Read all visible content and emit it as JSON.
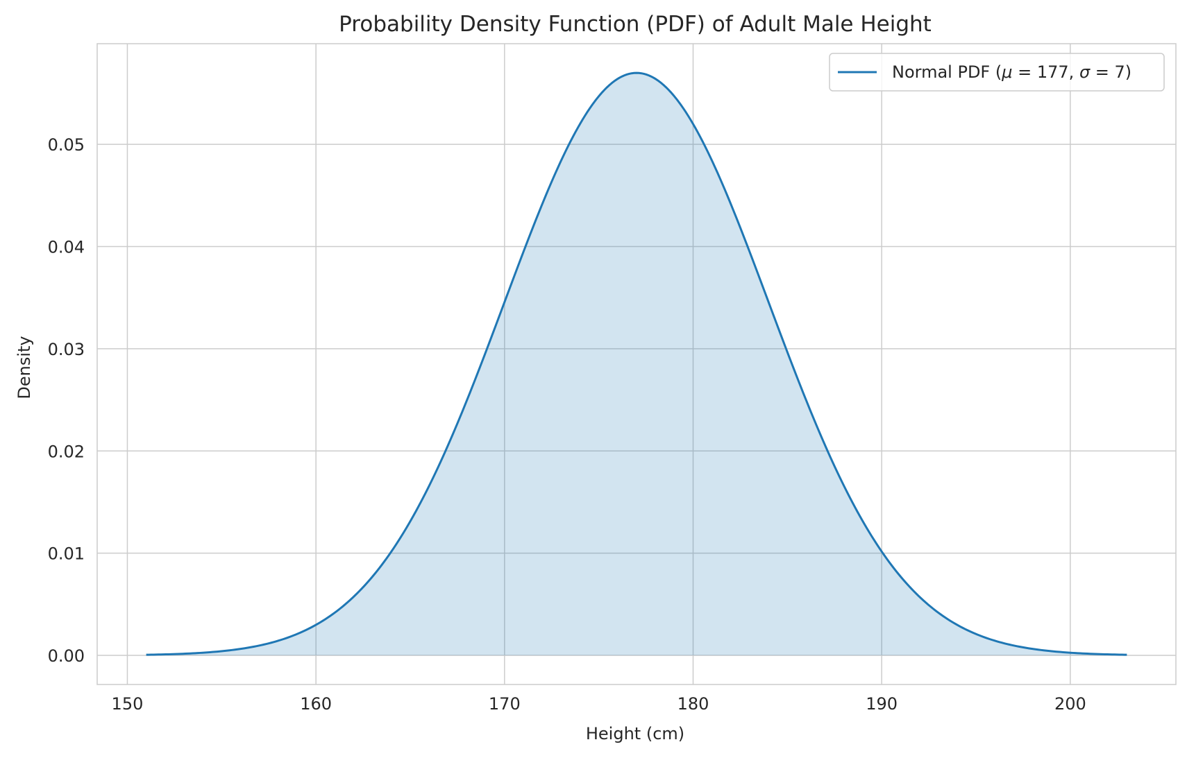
{
  "chart_data": {
    "type": "line",
    "title": "Probability Density Function (PDF) of Adult Male Height",
    "xlabel": "Height (cm)",
    "ylabel": "Density",
    "xlim": [
      148.4,
      205.6
    ],
    "ylim": [
      -0.00285,
      0.05985
    ],
    "xticks": [
      150,
      160,
      170,
      180,
      190,
      200
    ],
    "xtick_labels": [
      "150",
      "160",
      "170",
      "180",
      "190",
      "200"
    ],
    "yticks": [
      0.0,
      0.01,
      0.02,
      0.03,
      0.04,
      0.05
    ],
    "ytick_labels": [
      "0.00",
      "0.01",
      "0.02",
      "0.03",
      "0.04",
      "0.05"
    ],
    "grid": true,
    "legend_position": "top-right",
    "series": [
      {
        "name": "Normal PDF (μ = 177, σ = 7)",
        "legend_parts": {
          "prefix": "Normal PDF (",
          "mu": "μ",
          "eq1": " = 177, ",
          "sigma": "σ",
          "eq2": " = 7)"
        },
        "color": "#1f77b4",
        "fill_color": "#1f77b4",
        "fill_opacity": 0.2,
        "x": [
          151,
          153,
          155,
          157,
          159,
          161,
          163,
          165,
          167,
          169,
          171,
          173,
          175,
          177,
          179,
          181,
          183,
          185,
          187,
          189,
          191,
          193,
          195,
          197,
          199,
          201,
          203
        ],
        "y": [
          0.0001,
          0.0002,
          0.0004,
          0.001,
          0.0021,
          0.0041,
          0.0076,
          0.0131,
          0.0205,
          0.0294,
          0.0394,
          0.0482,
          0.0548,
          0.057,
          0.0548,
          0.0482,
          0.0394,
          0.0294,
          0.0205,
          0.0131,
          0.0076,
          0.0041,
          0.0021,
          0.001,
          0.0004,
          0.0002,
          0.0001
        ],
        "mean": 177,
        "std": 7
      }
    ]
  }
}
